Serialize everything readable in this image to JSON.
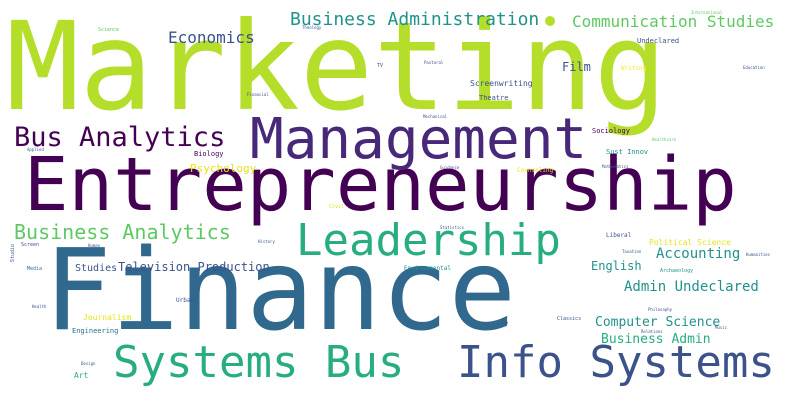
{
  "palette": {
    "lime": "#b5de2b",
    "deep_purple": "#440154",
    "indigo": "#3b528b",
    "blue_teal": "#2c728e",
    "teal": "#21918c",
    "green_teal": "#27ad81",
    "green": "#5ec962",
    "yellow": "#fde725",
    "purple": "#482878",
    "steel_blue": "#31688e",
    "light_green": "#7ad151",
    "yellow_lime": "#e5e419",
    "background": "#ffffff"
  },
  "words": {
    "marketing": "Marketing",
    "finance": "Finance",
    "entrepreneurship": "Entrepreneurship",
    "management": "Management",
    "leadership": "Leadership",
    "systems_bus": "Systems Bus",
    "info_systems": "Info Systems",
    "bus_analytics": "Bus Analytics",
    "business_analytics": "Business Analytics",
    "business_administration": "Business Administration",
    "communication_studies": "Communication Studies",
    "economics": "Economics",
    "film": "Film",
    "accounting": "Accounting",
    "admin_undeclared": "Admin Undeclared",
    "computer_science": "Computer Science",
    "business_admin": "Business Admin",
    "english": "English",
    "television_production": "Television Production",
    "studies": "Studies",
    "psychology": "Psychology",
    "screenwriting": "Screenwriting",
    "theatre": "Theatre",
    "undeclared": "Undeclared",
    "sociology": "Sociology",
    "sust_innov": "Sust Innov",
    "political_science": "Political Science",
    "biology": "Biology",
    "journalism": "Journalism",
    "engineering": "Engineering",
    "art": "Art",
    "urban": "Urban",
    "environmental": "Environmental",
    "counseling": "Counseling",
    "writing": "Writing",
    "liberal": "Liberal",
    "archaeology": "Archaeology",
    "classics": "Classics",
    "civil": "Civil",
    "media": "Media",
    "science": "Science",
    "theology": "Theology",
    "international": "International",
    "tv": "TV",
    "pastoral": "Pastoral",
    "education": "Education",
    "financial": "Financial",
    "mechanical": "Mechanical",
    "healthcare": "Healthcare",
    "mathematics": "Mathematics",
    "guidance": "Guidance",
    "statistics": "Statistics",
    "applied": "Applied",
    "human": "Human",
    "screen": "Screen",
    "studio": "Studio",
    "history": "History",
    "taxation": "Taxation",
    "humanities": "Humanities",
    "health": "Health",
    "philosophy": "Philosophy",
    "music": "Music",
    "relations": "Relations",
    "design": "Design",
    "non": "non"
  }
}
